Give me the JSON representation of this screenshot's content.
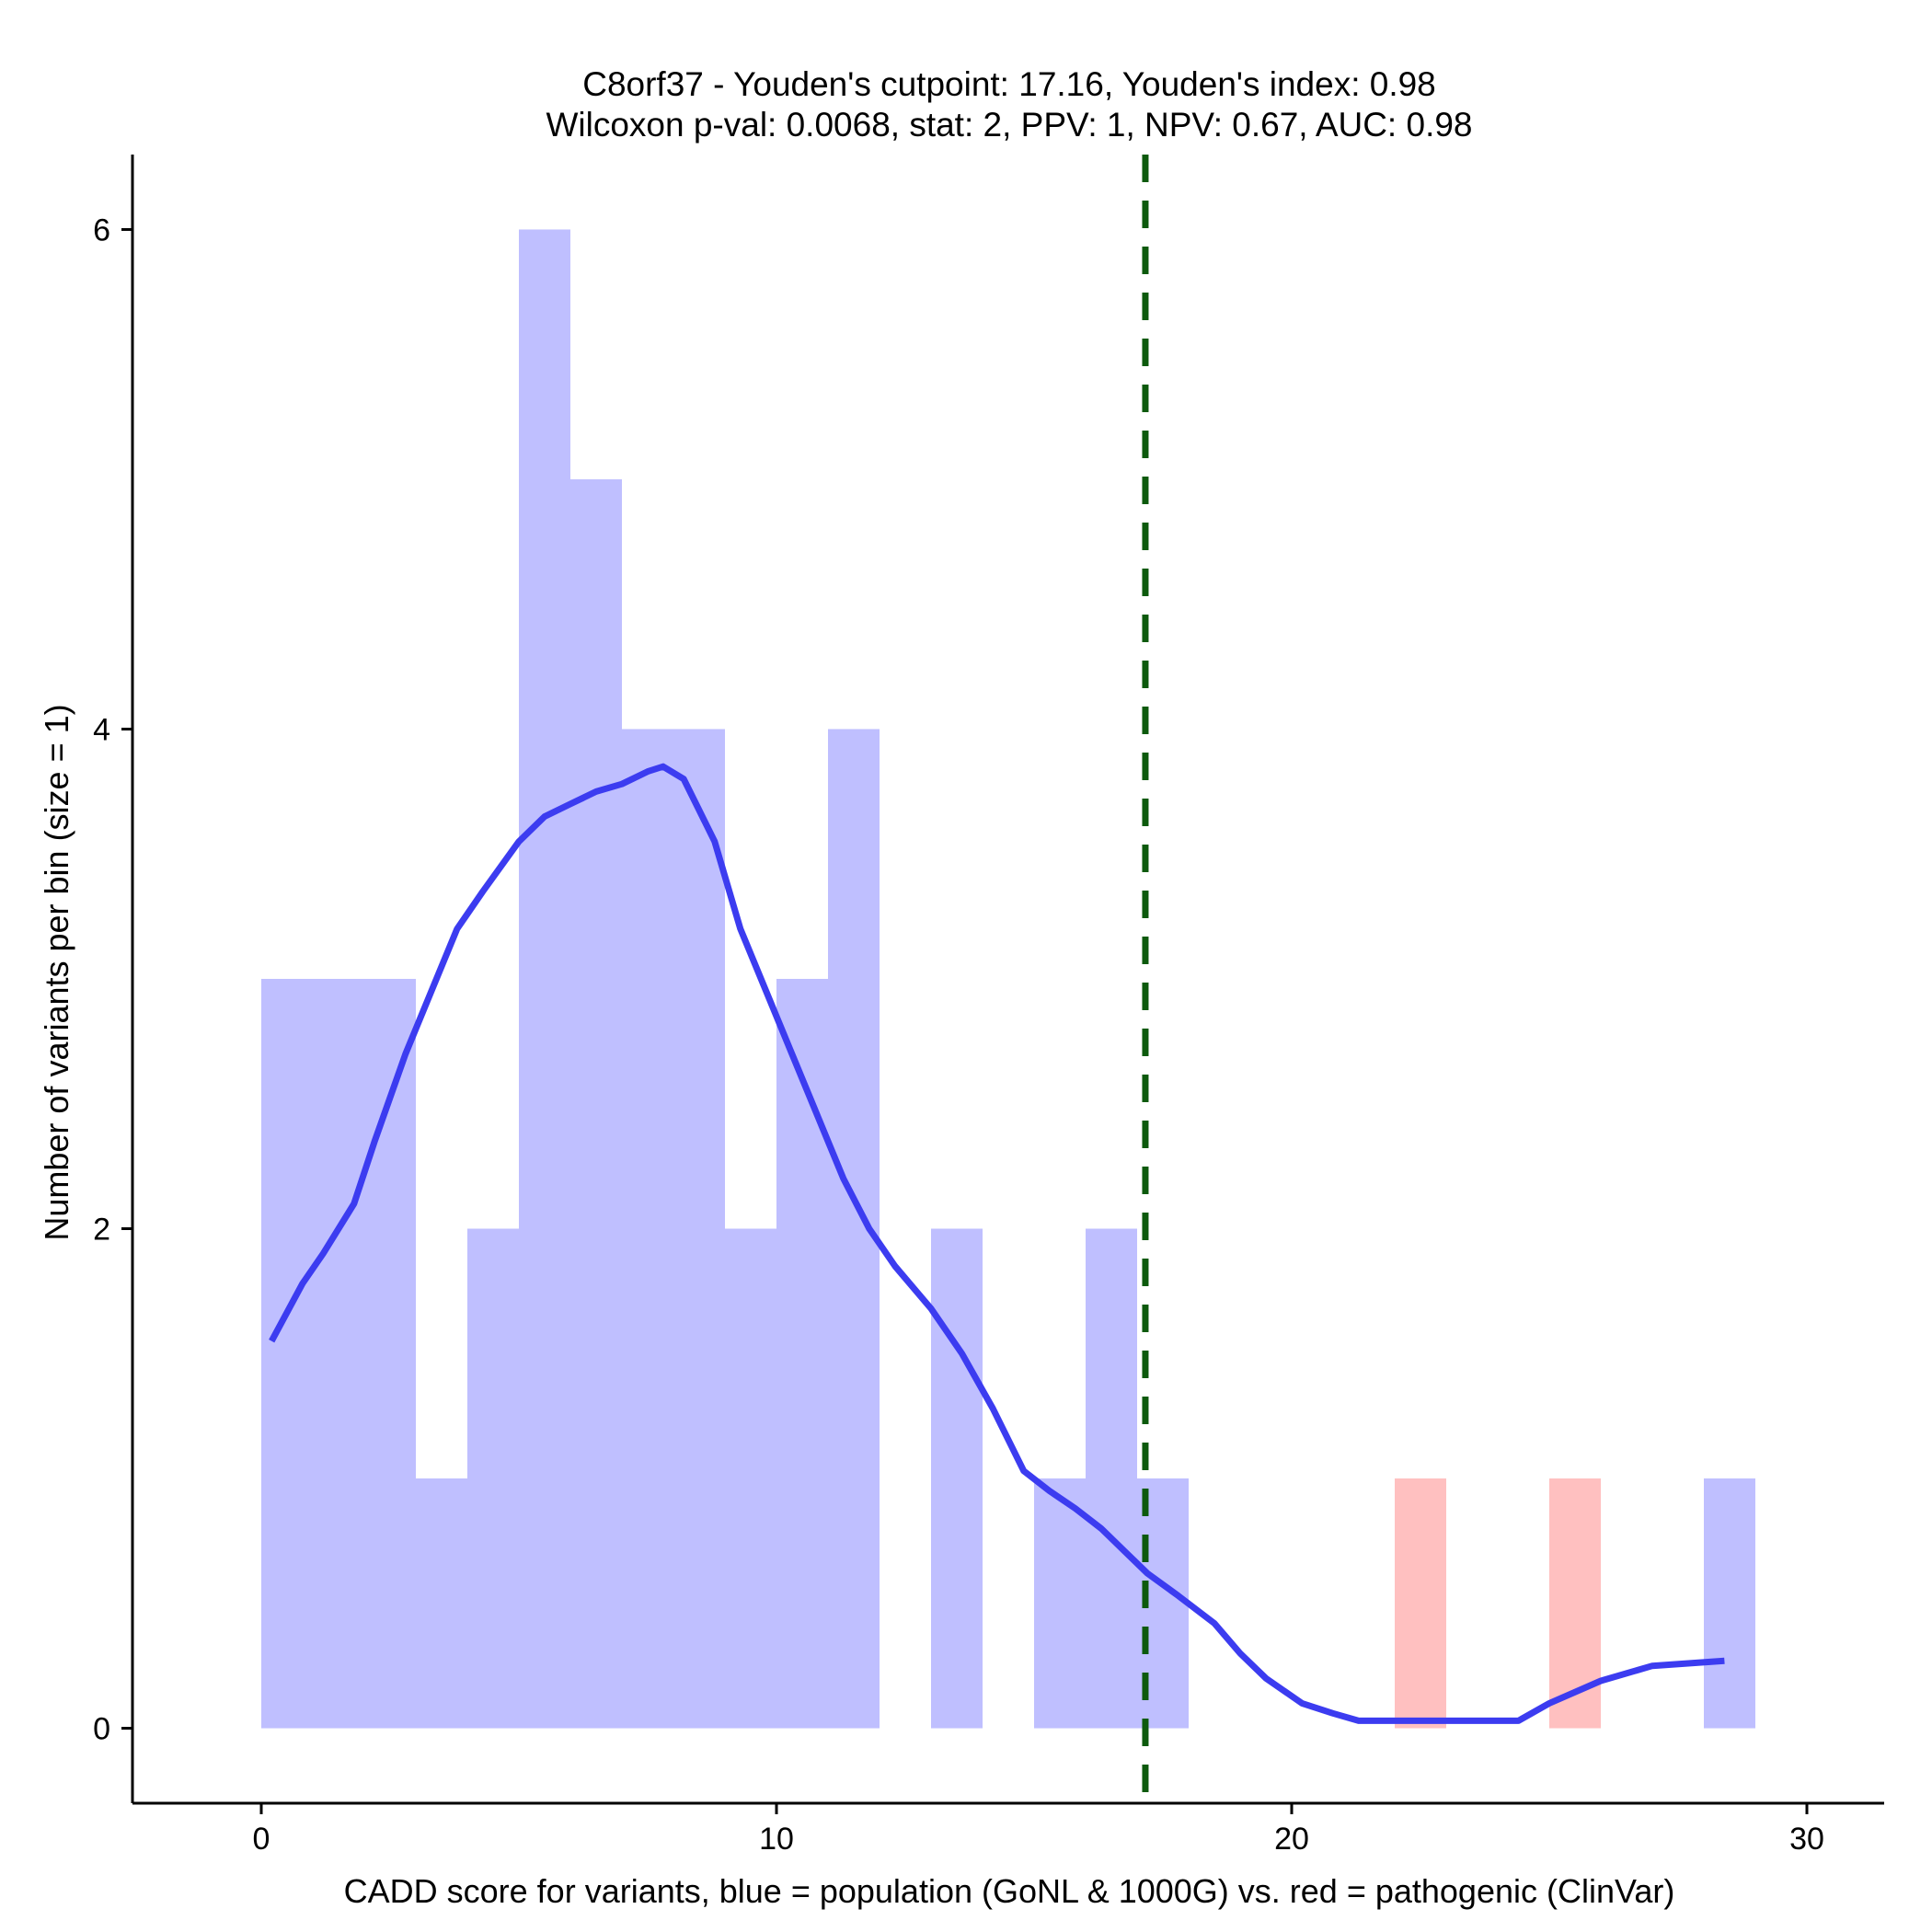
{
  "chart_data": {
    "type": "histogram",
    "title": "C8orf37 - Youden's cutpoint: 17.16, Youden's index: 0.98",
    "subtitle": "Wilcoxon p-val: 0.0068, stat: 2, PPV: 1, NPV: 0.67, AUC: 0.98",
    "xlabel": "CADD score for variants, blue = population (GoNL & 1000G) vs. red = pathogenic (ClinVar)",
    "ylabel": "Number of variants per bin (size = 1)",
    "xlim": [
      -2.5,
      31.5
    ],
    "ylim": [
      -0.3,
      6.3
    ],
    "x_ticks": [
      0,
      10,
      20,
      30
    ],
    "y_ticks": [
      0,
      2,
      4,
      6
    ],
    "bin_width": 1,
    "colors": {
      "population": "#bfbfff",
      "pathogenic": "#ffc0c0",
      "density": "#3c3cf0",
      "cutpoint": "#0d5a0d"
    },
    "series": [
      {
        "name": "population (GoNL & 1000G)",
        "color_key": "population",
        "bins": [
          {
            "x0": 0,
            "count": 3
          },
          {
            "x0": 1,
            "count": 3
          },
          {
            "x0": 2,
            "count": 3
          },
          {
            "x0": 3,
            "count": 1
          },
          {
            "x0": 4,
            "count": 2
          },
          {
            "x0": 5,
            "count": 6
          },
          {
            "x0": 6,
            "count": 5
          },
          {
            "x0": 7,
            "count": 4
          },
          {
            "x0": 8,
            "count": 4
          },
          {
            "x0": 9,
            "count": 2
          },
          {
            "x0": 10,
            "count": 3
          },
          {
            "x0": 11,
            "count": 4
          },
          {
            "x0": 13,
            "count": 2
          },
          {
            "x0": 15,
            "count": 1
          },
          {
            "x0": 16,
            "count": 2
          },
          {
            "x0": 17,
            "count": 1
          },
          {
            "x0": 28,
            "count": 1
          }
        ]
      },
      {
        "name": "pathogenic (ClinVar)",
        "color_key": "pathogenic",
        "bins": [
          {
            "x0": 22,
            "count": 1
          },
          {
            "x0": 25,
            "count": 1
          }
        ]
      }
    ],
    "density_line": {
      "x": [
        0.2,
        0.8,
        1.2,
        1.8,
        2.2,
        2.8,
        3.3,
        3.8,
        4.3,
        5.0,
        5.5,
        6.0,
        6.5,
        7.0,
        7.5,
        7.8,
        8.2,
        8.8,
        9.3,
        9.8,
        10.3,
        10.8,
        11.3,
        11.8,
        12.3,
        13.0,
        13.6,
        14.2,
        14.8,
        15.3,
        15.8,
        16.3,
        16.8,
        17.2,
        17.8,
        18.5,
        19.0,
        19.5,
        20.2,
        20.8,
        21.3,
        22.0,
        23.0,
        24.0,
        24.4,
        25.0,
        26.0,
        27.0,
        28.4
      ],
      "y": [
        1.55,
        1.78,
        1.9,
        2.1,
        2.35,
        2.7,
        2.95,
        3.2,
        3.35,
        3.55,
        3.65,
        3.7,
        3.75,
        3.78,
        3.83,
        3.85,
        3.8,
        3.55,
        3.2,
        2.95,
        2.7,
        2.45,
        2.2,
        2.0,
        1.85,
        1.68,
        1.5,
        1.28,
        1.03,
        0.95,
        0.88,
        0.8,
        0.7,
        0.62,
        0.53,
        0.42,
        0.3,
        0.2,
        0.1,
        0.06,
        0.03,
        0.03,
        0.03,
        0.03,
        0.03,
        0.1,
        0.19,
        0.25,
        0.27
      ]
    },
    "cutpoint": 17.16
  }
}
